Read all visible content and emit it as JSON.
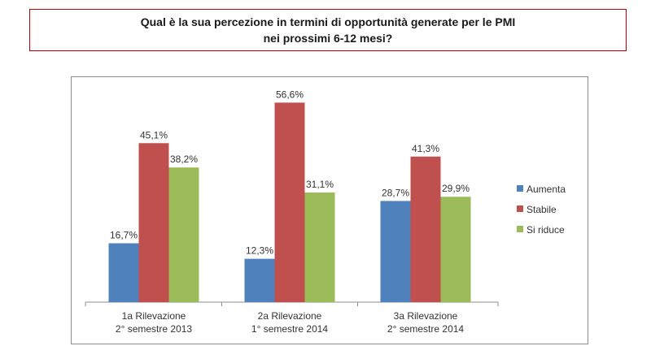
{
  "title": {
    "line1": "Qual è la sua percezione in termini di opportunità generate per le PMI",
    "line2": "nei prossimi 6-12 mesi?"
  },
  "chart_data": {
    "type": "bar",
    "title": "Qual è la sua percezione in termini di opportunità generate per le PMI nei prossimi 6-12 mesi?",
    "categories": [
      [
        "1a Rilevazione",
        "2° semestre  2013"
      ],
      [
        "2a Rilevazione",
        "1° semestre 2014"
      ],
      [
        "3a Rilevazione",
        "2° semestre 2014"
      ]
    ],
    "series": [
      {
        "name": "Aumenta",
        "color": "#4f81bd",
        "values": [
          16.7,
          12.3,
          28.7
        ],
        "labels": [
          "16,7%",
          "12,3%",
          "28,7%"
        ]
      },
      {
        "name": "Stabile",
        "color": "#c0504d",
        "values": [
          45.1,
          56.6,
          41.3
        ],
        "labels": [
          "45,1%",
          "56,6%",
          "41,3%"
        ]
      },
      {
        "name": "Si riduce",
        "color": "#9bbb59",
        "values": [
          38.2,
          31.1,
          29.9
        ],
        "labels": [
          "38,2%",
          "31,1%",
          "29,9%"
        ]
      }
    ],
    "ylim": [
      0,
      60
    ],
    "grid": false,
    "legend_position": "right"
  }
}
